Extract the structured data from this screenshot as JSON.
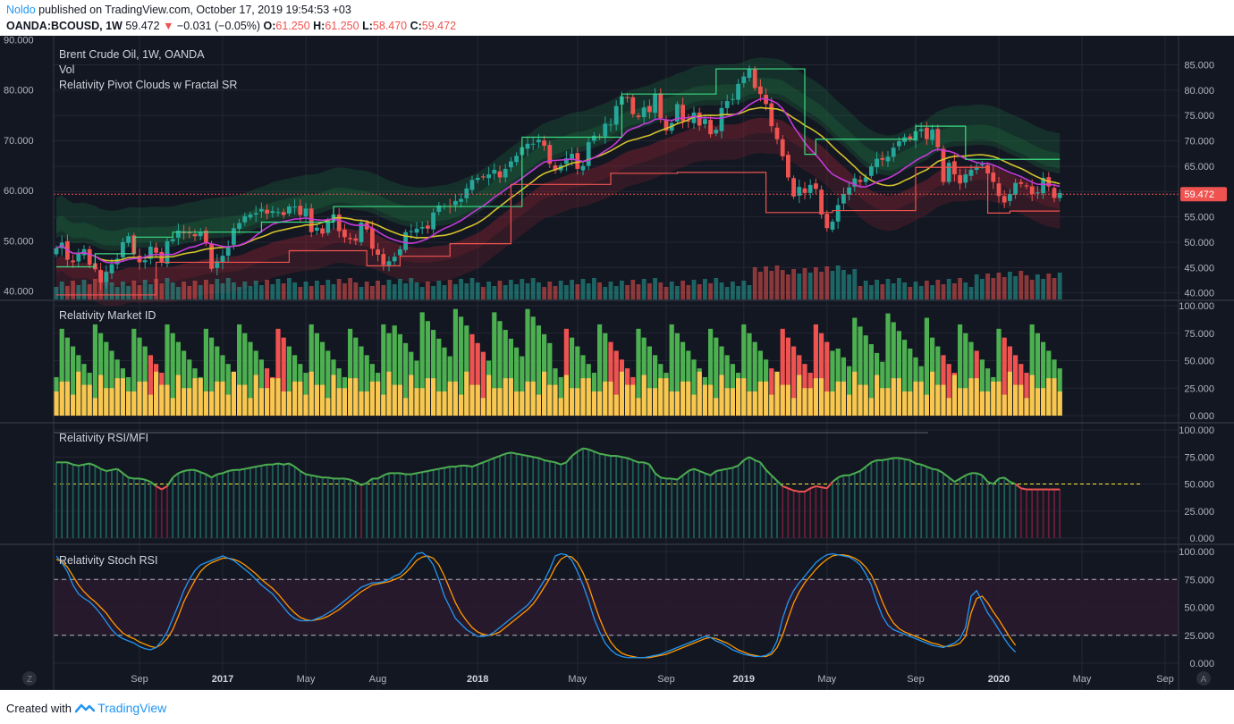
{
  "header": {
    "author": "Noldo",
    "published": "published on TradingView.com, October 17, 2019 19:54:53 +03",
    "symbol": "OANDA:BCOUSD, 1W",
    "price": "59.472",
    "arrow": "▼",
    "change": "−0.031 (−0.05%)",
    "o_label": "O:",
    "o_val": "61.250",
    "h_label": "H:",
    "h_val": "61.250",
    "l_label": "L:",
    "l_val": "58.470",
    "c_label": "C:",
    "c_val": "59.472"
  },
  "footer": {
    "created": "Created with",
    "brand": "TradingView"
  },
  "colors": {
    "background": "#131722",
    "grid": "#242733",
    "axis_text": "#b2b5be",
    "up": "#26a69a",
    "down": "#ef5350",
    "green_bar": "#4caf50",
    "red_bar": "#ef5350",
    "yellow_bar": "#f9c74f",
    "pivot_high": "#3ddc84",
    "pivot_low": "#ef5350",
    "ma_yellow": "#d4c22b",
    "ma_magenta": "#c43ad8",
    "stoch_k": "#2196f3",
    "stoch_d": "#ff9800",
    "ob_zone": "#2a1a2e"
  },
  "chart_data": [
    {
      "pane": "price",
      "type": "candlestick",
      "title": "Brent Crude Oil, 1W, OANDA",
      "legend": [
        "Brent Crude Oil, 1W, OANDA",
        "Vol",
        "Relativity Pivot Clouds w Fractal SR"
      ],
      "timeframe": "1W",
      "start_date": "2016-06-13",
      "close": [
        48.5,
        49.6,
        46.2,
        45.7,
        47.4,
        48.3,
        45.2,
        44.3,
        41.6,
        43.8,
        45.3,
        46.4,
        49.7,
        50.9,
        47.3,
        45.7,
        46.1,
        48.8,
        47.6,
        45.7,
        49.9,
        50.3,
        52.0,
        51.5,
        51.6,
        50.9,
        51.7,
        49.6,
        44.4,
        45.9,
        47.0,
        48.9,
        52.5,
        53.5,
        54.9,
        55.2,
        55.5,
        56.3,
        55.4,
        55.9,
        55.7,
        55.1,
        56.8,
        56.8,
        55.1,
        56.4,
        51.7,
        52.6,
        51.4,
        54.0,
        55.2,
        51.9,
        50.7,
        50.3,
        50.0,
        53.6,
        52.2,
        48.4,
        47.2,
        45.2,
        45.9,
        46.8,
        48.3,
        51.7,
        51.9,
        52.4,
        52.7,
        52.4,
        55.6,
        57.0,
        56.9,
        56.8,
        57.9,
        58.3,
        60.4,
        62.1,
        62.5,
        62.6,
        63.2,
        64.1,
        62.6,
        64.3,
        65.8,
        66.9,
        68.6,
        69.3,
        69.3,
        70.1,
        68.9,
        65.3,
        64.0,
        65.0,
        66.4,
        67.3,
        64.3,
        64.9,
        69.6,
        70.9,
        70.6,
        73.3,
        73.1,
        76.8,
        78.7,
        78.4,
        75.2,
        74.6,
        76.5,
        75.6,
        79.2,
        74.4,
        71.9,
        73.4,
        77.2,
        73.8,
        73.7,
        75.5,
        72.9,
        74.2,
        71.2,
        72.1,
        76.4,
        77.8,
        78.2,
        81.2,
        82.7,
        84.2,
        80.4,
        79.2,
        77.2,
        72.8,
        70.2,
        66.8,
        62.6,
        58.8,
        60.7,
        59.5,
        61.1,
        60.3,
        55.2,
        52.5,
        53.8,
        57.1,
        59.3,
        60.6,
        62.4,
        61.7,
        62.6,
        64.8,
        66.3,
        66.1,
        66.7,
        68.5,
        69.8,
        70.6,
        70.2,
        71.8,
        72.2,
        70.2,
        72.1,
        68.6,
        61.7,
        65.5,
        63.2,
        61.4,
        63.2,
        64.1,
        64.7,
        65.2,
        63.4,
        61.7,
        58.9,
        57.6,
        59.3,
        61.5,
        61.3,
        60.8,
        59.3,
        59.6,
        62.5,
        60.8,
        58.5,
        59.5
      ],
      "price_axis": [
        85,
        80,
        75,
        70,
        65,
        60,
        55,
        50,
        45,
        40
      ],
      "price_axis_labels": [
        "85.000",
        "80.000",
        "75.000",
        "70.000",
        "65.000",
        "60.000",
        "55.000",
        "50.000",
        "45.000",
        "40.000"
      ],
      "left_axis_labels": [
        "90.000",
        "80.000",
        "70.000",
        "60.000",
        "50.000",
        "40.000"
      ],
      "last_price_label": "59.472",
      "ylim": [
        38.5,
        91.5
      ],
      "pivot_high_steps": [
        [
          0,
          44.8
        ],
        [
          7,
          47.4
        ],
        [
          14,
          50.7
        ],
        [
          21,
          51.7
        ],
        [
          37,
          53.7
        ],
        [
          50,
          56.8
        ],
        [
          71,
          56.8
        ],
        [
          84,
          70.6
        ],
        [
          102,
          79.2
        ],
        [
          119,
          84.2
        ],
        [
          135,
          67.2
        ],
        [
          137,
          70.2
        ],
        [
          155,
          72.8
        ],
        [
          164,
          66.2
        ],
        [
          171,
          66.2
        ]
      ],
      "pivot_low_steps": [
        [
          0,
          39.2
        ],
        [
          18,
          45.7
        ],
        [
          42,
          48.0
        ],
        [
          56,
          45.0
        ],
        [
          62,
          46.9
        ],
        [
          71,
          49.4
        ],
        [
          82,
          61.2
        ],
        [
          100,
          63.4
        ],
        [
          112,
          63.6
        ],
        [
          128,
          55.6
        ],
        [
          140,
          56.0
        ],
        [
          155,
          64.6
        ],
        [
          168,
          55.5
        ],
        [
          172,
          55.9
        ]
      ]
    },
    {
      "pane": "market_id",
      "type": "bar",
      "title": "Relativity Market ID",
      "y_ticks": [
        "100.000",
        "75.000",
        "50.000",
        "25.000",
        "0.000"
      ],
      "ylim": [
        0,
        100
      ]
    },
    {
      "pane": "rsi_mfi",
      "type": "line",
      "title": "Relativity RSI/MFI",
      "y_ticks": [
        "100.000",
        "75.000",
        "50.000",
        "25.000",
        "0.000"
      ],
      "ylim": [
        0,
        100
      ],
      "midline": 50,
      "series": [
        {
          "name": "RSI",
          "values": [
            70,
            70,
            70,
            68,
            67,
            68,
            69,
            67,
            64,
            62,
            63,
            64,
            60,
            56,
            55,
            55,
            54,
            52,
            48,
            45,
            48,
            56,
            60,
            62,
            63,
            63,
            61,
            59,
            56,
            59,
            60,
            62,
            63,
            63,
            64,
            65,
            66,
            67,
            68,
            68,
            69,
            68,
            69,
            66,
            62,
            59,
            58,
            57,
            56,
            56,
            55,
            55,
            55,
            54,
            52,
            49,
            51,
            55,
            55,
            58,
            60,
            60,
            60,
            59,
            59,
            60,
            61,
            62,
            63,
            64,
            65,
            66,
            66,
            67,
            67,
            66,
            68,
            70,
            72,
            74,
            76,
            78,
            79,
            78,
            77,
            76,
            75,
            74,
            72,
            71,
            70,
            68,
            70,
            76,
            80,
            83,
            82,
            80,
            78,
            77,
            76,
            76,
            75,
            74,
            72,
            70,
            70,
            68,
            60,
            56,
            55,
            55,
            54,
            58,
            62,
            64,
            62,
            60,
            58,
            62,
            63,
            64,
            65,
            67,
            72,
            75,
            72,
            70,
            63,
            58,
            53,
            48,
            46,
            44,
            43,
            43,
            46,
            48,
            47,
            46,
            52,
            56,
            58,
            58,
            60,
            62,
            66,
            70,
            72,
            72,
            73,
            74,
            74,
            73,
            72,
            69,
            68,
            66,
            64,
            63,
            60,
            56,
            52,
            55,
            58,
            60,
            60,
            58,
            52,
            50,
            55,
            56,
            52,
            50,
            46,
            45
          ]
        }
      ]
    },
    {
      "pane": "stoch_rsi",
      "type": "line",
      "title": "Relativity Stoch RSI",
      "y_ticks": [
        "100.000",
        "75.000",
        "50.000",
        "25.000",
        "0.000"
      ],
      "ylim": [
        0,
        100
      ],
      "levels": [
        75,
        25
      ],
      "series": [
        {
          "name": "K",
          "values": [
            96,
            90,
            82,
            70,
            62,
            58,
            55,
            50,
            44,
            37,
            30,
            25,
            22,
            20,
            18,
            15,
            13,
            12,
            14,
            20,
            28,
            40,
            52,
            65,
            75,
            83,
            88,
            90,
            92,
            94,
            96,
            94,
            92,
            88,
            84,
            80,
            75,
            70,
            66,
            62,
            56,
            50,
            44,
            40,
            38,
            38,
            38,
            40,
            42,
            45,
            48,
            52,
            56,
            60,
            64,
            68,
            70,
            72,
            72,
            73,
            75,
            78,
            80,
            85,
            92,
            98,
            99,
            95,
            88,
            75,
            60,
            50,
            40,
            35,
            30,
            27,
            24,
            24,
            25,
            28,
            32,
            36,
            40,
            44,
            48,
            52,
            58,
            66,
            74,
            84,
            96,
            98,
            97,
            92,
            82,
            70,
            56,
            40,
            28,
            18,
            12,
            8,
            6,
            5,
            5,
            5,
            5,
            6,
            7,
            8,
            10,
            12,
            14,
            16,
            18,
            20,
            22,
            24,
            23,
            20,
            18,
            15,
            12,
            10,
            8,
            7,
            6,
            6,
            7,
            10,
            20,
            40,
            55,
            65,
            72,
            78,
            84,
            90,
            94,
            97,
            98,
            97,
            96,
            95,
            92,
            88,
            80,
            70,
            55,
            42,
            34,
            30,
            28,
            26,
            24,
            22,
            20,
            18,
            16,
            15,
            14,
            16,
            18,
            22,
            32,
            60,
            65,
            55,
            45,
            38,
            30,
            22,
            15,
            10
          ]
        },
        {
          "name": "D",
          "values": [
            93,
            91,
            86,
            78,
            70,
            64,
            59,
            55,
            50,
            45,
            38,
            32,
            27,
            24,
            22,
            19,
            17,
            15,
            14,
            17,
            22,
            30,
            42,
            55,
            65,
            74,
            82,
            87,
            90,
            92,
            94,
            94,
            93,
            91,
            88,
            84,
            80,
            75,
            71,
            67,
            62,
            56,
            50,
            45,
            41,
            39,
            38,
            39,
            40,
            42,
            45,
            48,
            52,
            56,
            60,
            64,
            67,
            70,
            71,
            72,
            73,
            75,
            77,
            81,
            86,
            92,
            95,
            96,
            94,
            88,
            78,
            66,
            54,
            45,
            38,
            32,
            28,
            26,
            25,
            26,
            28,
            32,
            36,
            40,
            44,
            48,
            53,
            60,
            68,
            76,
            86,
            93,
            96,
            95,
            90,
            81,
            69,
            54,
            40,
            28,
            19,
            13,
            9,
            7,
            6,
            5,
            5,
            5,
            6,
            7,
            8,
            10,
            12,
            14,
            16,
            18,
            20,
            22,
            23,
            22,
            20,
            18,
            15,
            12,
            10,
            8,
            7,
            6,
            6,
            8,
            14,
            25,
            40,
            54,
            64,
            72,
            78,
            84,
            89,
            93,
            96,
            97,
            97,
            96,
            94,
            91,
            86,
            79,
            68,
            55,
            44,
            36,
            31,
            28,
            26,
            24,
            22,
            20,
            18,
            17,
            15,
            15,
            16,
            18,
            24,
            45,
            58,
            60,
            54,
            46,
            39,
            31,
            23,
            16
          ]
        }
      ]
    }
  ],
  "time_axis": {
    "labels": [
      {
        "text": "Sep",
        "bold": false
      },
      {
        "text": "2017",
        "bold": true
      },
      {
        "text": "May",
        "bold": false
      },
      {
        "text": "Aug",
        "bold": false
      },
      {
        "text": "2018",
        "bold": true
      },
      {
        "text": "May",
        "bold": false
      },
      {
        "text": "Sep",
        "bold": false
      },
      {
        "text": "2019",
        "bold": true
      },
      {
        "text": "May",
        "bold": false
      },
      {
        "text": "Sep",
        "bold": false
      },
      {
        "text": "2020",
        "bold": true
      },
      {
        "text": "May",
        "bold": false
      },
      {
        "text": "Sep",
        "bold": false
      }
    ]
  },
  "corner_left": "Z",
  "corner_right": "A"
}
